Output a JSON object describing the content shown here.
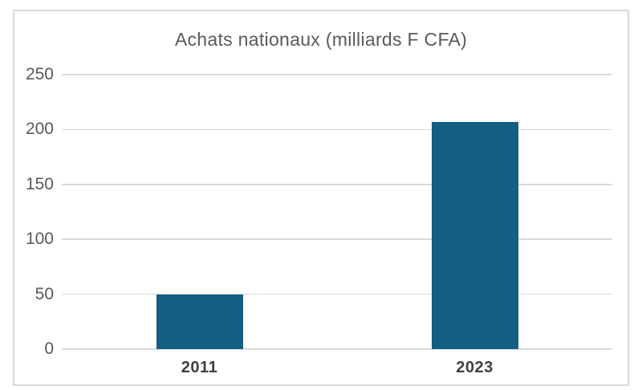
{
  "chart_data": {
    "type": "bar",
    "title": "Achats nationaux (milliards F CFA)",
    "categories": [
      "2011",
      "2023"
    ],
    "values": [
      50,
      207
    ],
    "xlabel": "",
    "ylabel": "",
    "ylim": [
      0,
      250
    ],
    "yticks": [
      0,
      50,
      100,
      150,
      200,
      250
    ],
    "grid": true,
    "legend": "none"
  },
  "colors": {
    "bar": "#135e82",
    "grid": "#d9d9d9",
    "frame_border": "#d9d9d9",
    "title": "#595959",
    "tick": "#595959",
    "category": "#3f3f3f"
  }
}
